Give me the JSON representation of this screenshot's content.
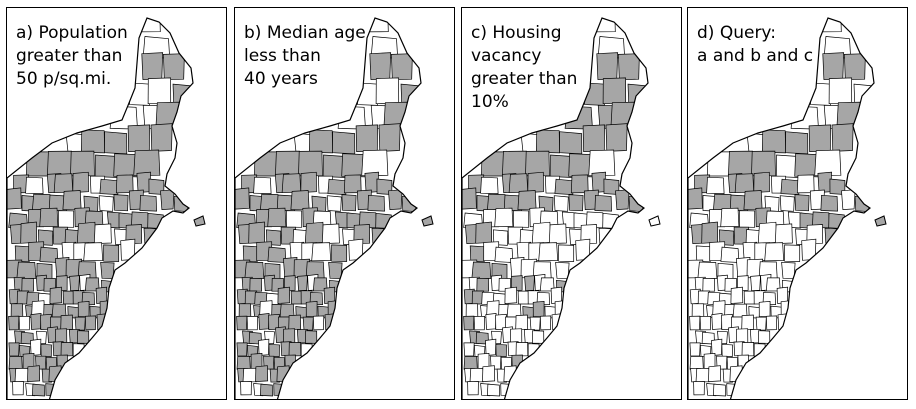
{
  "panels": [
    {
      "id": "a",
      "caption": "a) Population\ngreater than\n50 p/sq.mi.",
      "pattern": "population"
    },
    {
      "id": "b",
      "caption": "b) Median age\nless than\n40 years",
      "pattern": "age"
    },
    {
      "id": "c",
      "caption": "c) Housing\nvacancy\ngreater than\n10%",
      "pattern": "vacancy"
    },
    {
      "id": "d",
      "caption": "d) Query:\na and b and c",
      "pattern": "query"
    }
  ],
  "colors": {
    "selected": "#a6a6a6",
    "unselected": "#ffffff",
    "border": "#000000"
  }
}
